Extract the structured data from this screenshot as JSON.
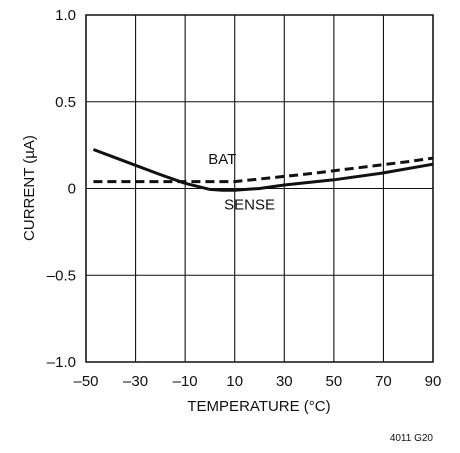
{
  "chart_data": {
    "type": "line",
    "title": "",
    "xlabel": "TEMPERATURE (°C)",
    "ylabel": "CURRENT (µA)",
    "xlim": [
      -50,
      90
    ],
    "ylim": [
      -1.0,
      1.0
    ],
    "x_ticks": [
      -50,
      -30,
      -10,
      10,
      30,
      50,
      70,
      90
    ],
    "x_tick_labels": [
      "–50",
      "–30",
      "–10",
      "10",
      "30",
      "50",
      "70",
      "90"
    ],
    "y_ticks": [
      1.0,
      0.5,
      0,
      -0.5,
      -1.0
    ],
    "y_tick_labels": [
      "1.0",
      "0.5",
      "0",
      "–0.5",
      "–1.0"
    ],
    "grid": true,
    "legend": "none (direct labels on curves)",
    "series": [
      {
        "name": "BAT",
        "style": "dashed",
        "color": "#111111",
        "x": [
          -47,
          -20,
          0,
          10,
          20,
          40,
          60,
          80,
          90
        ],
        "y": [
          0.04,
          0.04,
          0.04,
          0.04,
          0.055,
          0.085,
          0.12,
          0.155,
          0.175
        ]
      },
      {
        "name": "SENSE",
        "style": "solid",
        "color": "#111111",
        "x": [
          -47,
          -35,
          -20,
          -10,
          0,
          5,
          10,
          20,
          30,
          50,
          70,
          90
        ],
        "y": [
          0.225,
          0.16,
          0.08,
          0.03,
          -0.005,
          -0.01,
          -0.01,
          0.0,
          0.02,
          0.05,
          0.09,
          0.14
        ]
      }
    ],
    "annotations": [
      {
        "text": "BAT",
        "x": 5,
        "y": 0.14
      },
      {
        "text": "SENSE",
        "x": 16,
        "y": -0.12
      }
    ],
    "figure_code": "4011 G20"
  }
}
